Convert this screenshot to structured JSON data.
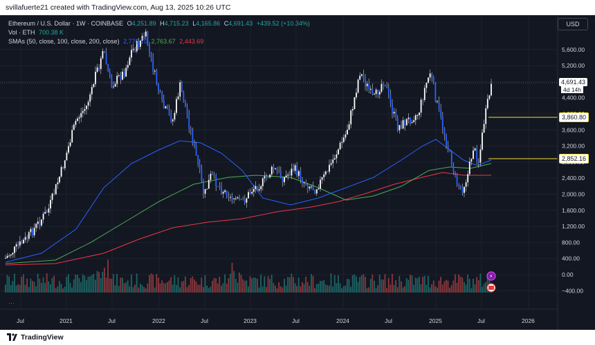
{
  "header": {
    "text": "svillafuerte21 created with TradingView.com, Aug 13, 2025 10:26 UTC"
  },
  "legend": {
    "symbol": "Ethereum / U.S. Dollar · 1W · COINBASE",
    "open_label": "O",
    "open": "4,251.89",
    "high_label": "H",
    "high": "4,715.23",
    "low_label": "L",
    "low": "4,165.86",
    "close_label": "C",
    "close": "4,691.43",
    "change": "+439.52 (+10.34%)",
    "vol_label": "Vol · ETH",
    "vol": "700.38 K",
    "sma_label": "SMAs (50, close, 100, close, 200, close)",
    "sma50": "2,776.70",
    "sma100": "2,763.67",
    "sma200": "2,443.69"
  },
  "currency": "USD",
  "price_axis": [
    "5,600.00",
    "5,200.00",
    "4,800.00",
    "4,400.00",
    "4,000.00",
    "3,600.00",
    "3,200.00",
    "2,800.00",
    "2,400.00",
    "2,000.00",
    "1,600.00",
    "1,200.00",
    "800.00",
    "400.00",
    "0.00",
    "−400.00"
  ],
  "time_axis": [
    "Jul",
    "2021",
    "Jul",
    "2022",
    "Jul",
    "2023",
    "Jul",
    "2024",
    "Jul",
    "2025",
    "Jul",
    "2026"
  ],
  "tags": {
    "last_price": "4,691.43",
    "countdown": "4d 14h",
    "level_upper": "3,860.80",
    "level_lower": "2,852.16"
  },
  "colors": {
    "bg": "#131722",
    "candle": "#2962ff",
    "candle_wick": "#d1d4dc",
    "sma50": "#2962ff",
    "sma100": "#4caf50",
    "sma200": "#f23645",
    "level": "#f5e232",
    "vol_up": "#26a69a",
    "vol_down": "#ef5350"
  },
  "footer": {
    "brand": "TradingView"
  }
}
